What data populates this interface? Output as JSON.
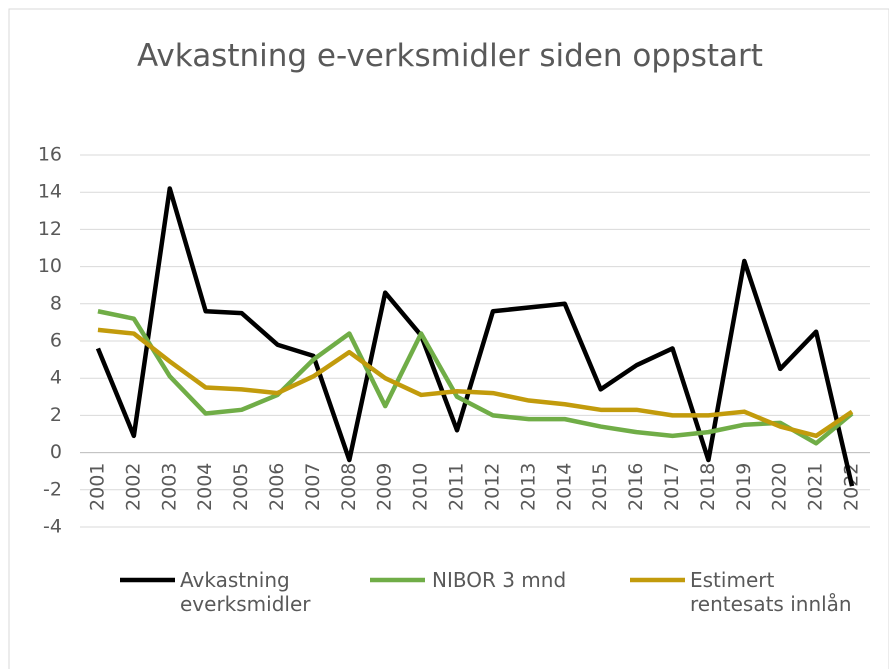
{
  "chart_data": {
    "type": "line",
    "title": "Avkastning e-verksmidler siden oppstart",
    "categories": [
      "2001",
      "2002",
      "2003",
      "2004",
      "2005",
      "2006",
      "2007",
      "2008",
      "2009",
      "2010",
      "2011",
      "2012",
      "2013",
      "2014",
      "2015",
      "2016",
      "2017",
      "2018",
      "2019",
      "2020",
      "2021",
      "2022"
    ],
    "series": [
      {
        "name": "Avkastning everksmidler",
        "color": "#000000",
        "values": [
          5.6,
          0.9,
          14.2,
          7.6,
          7.5,
          5.8,
          5.2,
          -0.4,
          8.6,
          6.3,
          1.2,
          7.6,
          7.8,
          8.0,
          3.4,
          4.7,
          5.6,
          -0.4,
          10.3,
          4.5,
          6.5,
          -1.8
        ]
      },
      {
        "name": "NIBOR 3 mnd",
        "color": "#70ad47",
        "values": [
          7.6,
          7.2,
          4.1,
          2.1,
          2.3,
          3.1,
          5.0,
          6.4,
          2.5,
          6.4,
          3.0,
          2.0,
          1.8,
          1.8,
          1.4,
          1.1,
          0.9,
          1.1,
          1.5,
          1.6,
          0.5,
          2.1
        ]
      },
      {
        "name": "Estimert rentesats innlån",
        "color": "#c29b0c",
        "values": [
          6.6,
          6.4,
          4.9,
          3.5,
          3.4,
          3.2,
          4.1,
          5.4,
          4.0,
          3.1,
          3.3,
          3.2,
          2.8,
          2.6,
          2.3,
          2.3,
          2.0,
          2.0,
          2.2,
          1.4,
          0.9,
          2.2
        ]
      }
    ],
    "ylim": [
      -4,
      16
    ],
    "yticks": [
      -4,
      -2,
      0,
      2,
      4,
      6,
      8,
      10,
      12,
      14,
      16
    ],
    "grid": true,
    "legend": "bottom"
  }
}
